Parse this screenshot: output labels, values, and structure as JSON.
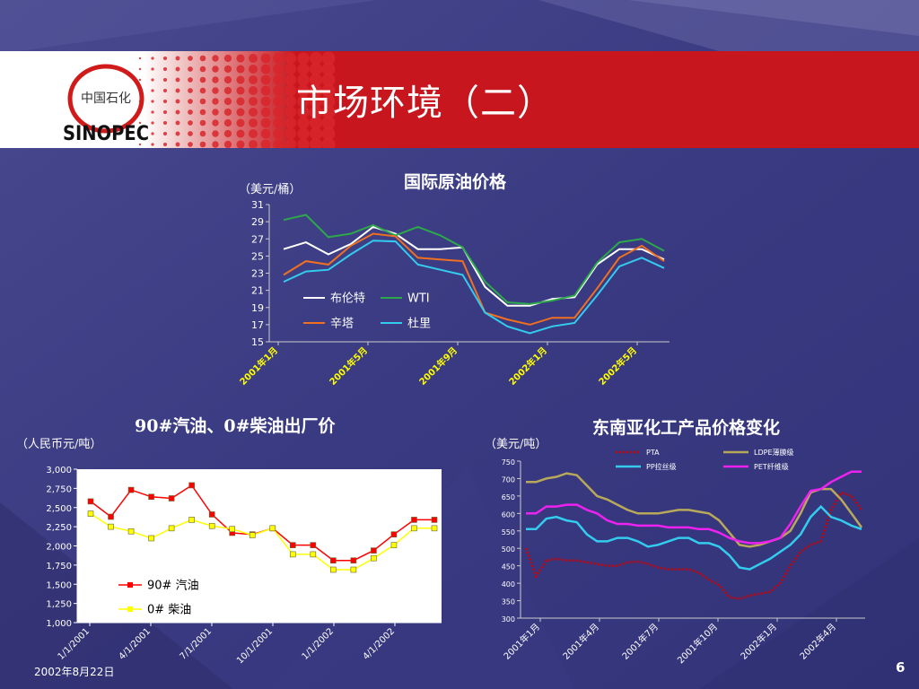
{
  "slide": {
    "title": "市场环境（二）",
    "date": "2002年8月22日",
    "page_number": "6",
    "logo": {
      "brand": "SINOPEC",
      "chinese": "中国石化"
    }
  },
  "chart_data": [
    {
      "type": "line",
      "title": "国际原油价格",
      "ylabel": "（美元/桶）",
      "ylim": [
        15,
        31
      ],
      "yticks": [
        15,
        17,
        19,
        21,
        23,
        25,
        27,
        29,
        31
      ],
      "xticks": [
        "2001年1月",
        "2001年5月",
        "2001年9月",
        "2002年1月",
        "2002年5月"
      ],
      "legend": "inside bottom-left",
      "series": [
        {
          "name": "布伦特",
          "color": "#ffffff",
          "values": [
            25.8,
            26.6,
            25.2,
            26.4,
            28.4,
            27.6,
            25.8,
            25.8,
            26.0,
            21.4,
            19.2,
            19.2,
            20.0,
            20.2,
            24.0,
            25.8,
            25.8,
            24.6
          ]
        },
        {
          "name": "WTI",
          "color": "#2ca84a",
          "values": [
            29.2,
            29.8,
            27.2,
            27.6,
            28.6,
            27.4,
            28.4,
            27.4,
            26.0,
            22.0,
            19.6,
            19.4,
            19.8,
            20.4,
            24.2,
            26.6,
            27.0,
            25.6
          ]
        },
        {
          "name": "辛塔",
          "color": "#f07020",
          "values": [
            22.8,
            24.4,
            24.0,
            26.2,
            27.6,
            27.3,
            24.8,
            24.6,
            24.4,
            18.4,
            17.6,
            17.0,
            17.8,
            17.8,
            21.2,
            24.8,
            26.2,
            24.4
          ]
        },
        {
          "name": "杜里",
          "color": "#33ccee",
          "values": [
            22.0,
            23.2,
            23.4,
            25.2,
            26.8,
            26.7,
            24.0,
            23.4,
            22.8,
            18.4,
            16.8,
            16.0,
            16.8,
            17.2,
            20.4,
            23.8,
            24.8,
            23.6
          ]
        }
      ]
    },
    {
      "type": "line",
      "title": "90#汽油、0#柴油出厂价",
      "ylabel": "（人民币元/吨）",
      "ylim": [
        1000,
        3000
      ],
      "yticks": [
        "1,000",
        "1,250",
        "1,500",
        "1,750",
        "2,000",
        "2,250",
        "2,500",
        "2,750",
        "3,000"
      ],
      "xticks": [
        "1/1/2001",
        "4/1/2001",
        "7/1/2001",
        "10/1/2001",
        "1/1/2002",
        "4/1/2002"
      ],
      "legend": "inside bottom-left",
      "series": [
        {
          "name": "90# 汽油",
          "color": "#ff0000",
          "values": [
            2580,
            2380,
            2730,
            2640,
            2620,
            2790,
            2410,
            2170,
            2150,
            2230,
            2010,
            2010,
            1810,
            1810,
            1940,
            2150,
            2340,
            2340
          ]
        },
        {
          "name": "0# 柴油",
          "color": "#ffff00",
          "values": [
            2420,
            2250,
            2190,
            2100,
            2230,
            2340,
            2260,
            2220,
            2140,
            2230,
            1890,
            1890,
            1690,
            1690,
            1840,
            2010,
            2230,
            2230
          ]
        }
      ]
    },
    {
      "type": "line",
      "title": "东南亚化工产品价格变化",
      "ylabel": "（美元/吨）",
      "ylim": [
        300,
        750
      ],
      "yticks": [
        300,
        350,
        400,
        450,
        500,
        550,
        600,
        650,
        700,
        750
      ],
      "xticks": [
        "2001年1月",
        "2001年4月",
        "2001年7月",
        "2001年10月",
        "2002年1月",
        "2002年4月"
      ],
      "legend": "top",
      "series": [
        {
          "name": "PTA",
          "color": "#cc0000",
          "values": [
            500,
            420,
            465,
            470,
            465,
            465,
            460,
            455,
            450,
            450,
            460,
            462,
            455,
            445,
            440,
            440,
            440,
            430,
            410,
            395,
            360,
            355,
            365,
            370,
            375,
            400,
            450,
            490,
            510,
            520,
            610,
            660,
            650,
            610
          ]
        },
        {
          "name": "LDPE薄膜级",
          "color": "#b8a85a",
          "values": [
            690,
            690,
            700,
            705,
            715,
            710,
            680,
            650,
            640,
            625,
            610,
            600,
            600,
            600,
            605,
            610,
            610,
            605,
            600,
            580,
            545,
            510,
            505,
            510,
            520,
            530,
            550,
            600,
            660,
            670,
            670,
            640,
            600,
            560
          ]
        },
        {
          "name": "PP拉丝级",
          "color": "#33ccee",
          "values": [
            555,
            555,
            585,
            590,
            580,
            575,
            540,
            520,
            520,
            530,
            530,
            520,
            505,
            510,
            520,
            530,
            530,
            515,
            515,
            505,
            480,
            445,
            440,
            455,
            470,
            490,
            510,
            540,
            590,
            620,
            590,
            580,
            565,
            555
          ]
        },
        {
          "name": "PET纤维级",
          "color": "#ee22ee",
          "values": [
            600,
            600,
            620,
            620,
            625,
            625,
            610,
            600,
            580,
            570,
            570,
            565,
            565,
            565,
            560,
            560,
            560,
            555,
            555,
            545,
            530,
            520,
            515,
            515,
            520,
            530,
            570,
            620,
            665,
            670,
            690,
            705,
            720,
            720
          ]
        }
      ]
    }
  ]
}
